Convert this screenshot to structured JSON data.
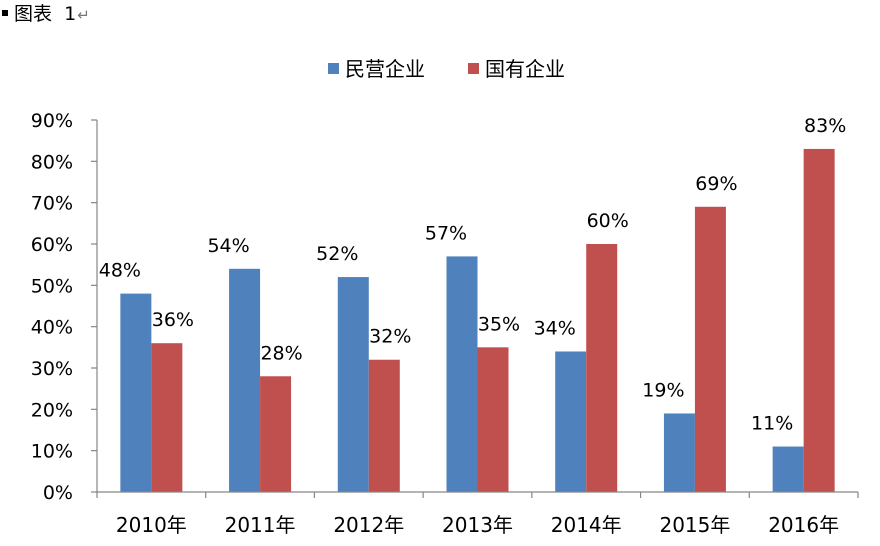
{
  "figure_caption": {
    "label": "图表",
    "number": "1",
    "return_mark": "↵"
  },
  "colors": {
    "series_1": "#4F81BD",
    "series_2": "#C0504D",
    "axis": "#868686",
    "text": "#000000"
  },
  "chart_data": {
    "type": "bar",
    "categories": [
      "2010年",
      "2011年",
      "2012年",
      "2013年",
      "2014年",
      "2015年",
      "2016年"
    ],
    "series": [
      {
        "name": "民营企业",
        "values": [
          48,
          54,
          52,
          57,
          34,
          19,
          11
        ],
        "labels": [
          "48%",
          "54%",
          "52%",
          "57%",
          "34%",
          "19%",
          "11%"
        ]
      },
      {
        "name": "国有企业",
        "values": [
          36,
          28,
          32,
          35,
          60,
          69,
          83
        ],
        "labels": [
          "36%",
          "28%",
          "32%",
          "35%",
          "60%",
          "69%",
          "83%"
        ]
      }
    ],
    "ylim": [
      0,
      90
    ],
    "yticks": [
      "0%",
      "10%",
      "20%",
      "30%",
      "40%",
      "50%",
      "60%",
      "70%",
      "80%",
      "90%"
    ],
    "ytick_values": [
      0,
      10,
      20,
      30,
      40,
      50,
      60,
      70,
      80,
      90
    ],
    "grid": false,
    "legend_position": "top-center",
    "title": "",
    "xlabel": "",
    "ylabel": ""
  }
}
